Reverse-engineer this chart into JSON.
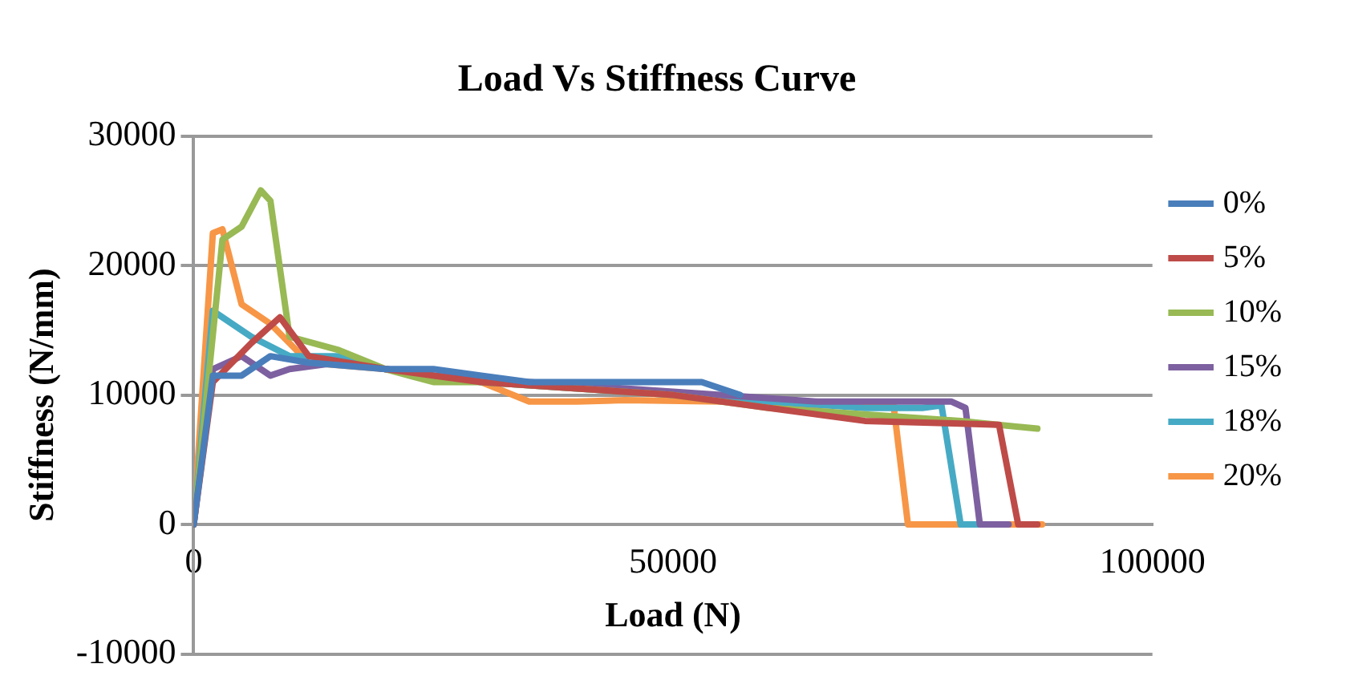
{
  "chart_data": {
    "type": "line",
    "title": "Load Vs Stiffness Curve",
    "xlabel": "Load (N)",
    "ylabel": "Stiffness (N/mm)",
    "xlim": [
      0,
      100000
    ],
    "xticks": [
      0,
      50000,
      100000
    ],
    "ylim": [
      -10000,
      30000
    ],
    "yticks": [
      -10000,
      0,
      10000,
      20000,
      30000
    ],
    "grid": "y",
    "legend": "right",
    "marker": "none",
    "line_style": "solid",
    "series": [
      {
        "name": "0%",
        "color": "#4a7ebb",
        "x": [
          0,
          2000,
          5000,
          8000,
          12000,
          20000,
          25000,
          30000,
          35000,
          40000,
          45000,
          50000,
          53000,
          57000
        ],
        "values": [
          0,
          11500,
          11500,
          13000,
          12500,
          12000,
          12000,
          11500,
          11000,
          11000,
          11000,
          11000,
          11000,
          10000
        ]
      },
      {
        "name": "5%",
        "color": "#be4b48",
        "x": [
          0,
          2000,
          6000,
          9000,
          12000,
          20000,
          30000,
          40000,
          50000,
          60000,
          70000,
          80000,
          84000,
          86000,
          88000
        ],
        "values": [
          0,
          11000,
          14000,
          16000,
          13000,
          12000,
          11000,
          10500,
          10000,
          9000,
          8000,
          7800,
          7700,
          0,
          0
        ]
      },
      {
        "name": "10%",
        "color": "#98b954",
        "x": [
          0,
          3000,
          5000,
          7000,
          8000,
          10000,
          15000,
          20000,
          25000,
          30000,
          40000,
          50000,
          60000,
          70000,
          80000,
          88000
        ],
        "values": [
          0,
          22000,
          23000,
          25800,
          25000,
          14500,
          13500,
          12000,
          11000,
          11000,
          10500,
          10000,
          9000,
          8500,
          8000,
          7400
        ]
      },
      {
        "name": "15%",
        "color": "#7d60a0",
        "x": [
          0,
          2000,
          5000,
          8000,
          10000,
          15000,
          25000,
          35000,
          45000,
          55000,
          65000,
          75000,
          79000,
          80500,
          82000,
          85000
        ],
        "values": [
          0,
          12000,
          13000,
          11500,
          12000,
          12500,
          11500,
          11000,
          10500,
          10000,
          9500,
          9500,
          9500,
          9000,
          0,
          0
        ]
      },
      {
        "name": "18%",
        "color": "#46aac5",
        "x": [
          0,
          2000,
          6000,
          10000,
          15000,
          20000,
          30000,
          40000,
          50000,
          60000,
          70000,
          76000,
          78000,
          80000,
          83000
        ],
        "values": [
          0,
          16500,
          14500,
          13000,
          13000,
          12000,
          11000,
          10500,
          10000,
          9500,
          9000,
          9000,
          9200,
          0,
          0
        ]
      },
      {
        "name": "20%",
        "color": "#f79646",
        "x": [
          0,
          2000,
          3000,
          5000,
          8000,
          12000,
          20000,
          30000,
          35000,
          40000,
          45000,
          55000,
          65000,
          73000,
          74500,
          88500
        ],
        "values": [
          0,
          22500,
          22800,
          17000,
          15500,
          12500,
          12000,
          11000,
          9500,
          9500,
          9600,
          9500,
          9200,
          9200,
          0,
          0
        ]
      }
    ]
  }
}
